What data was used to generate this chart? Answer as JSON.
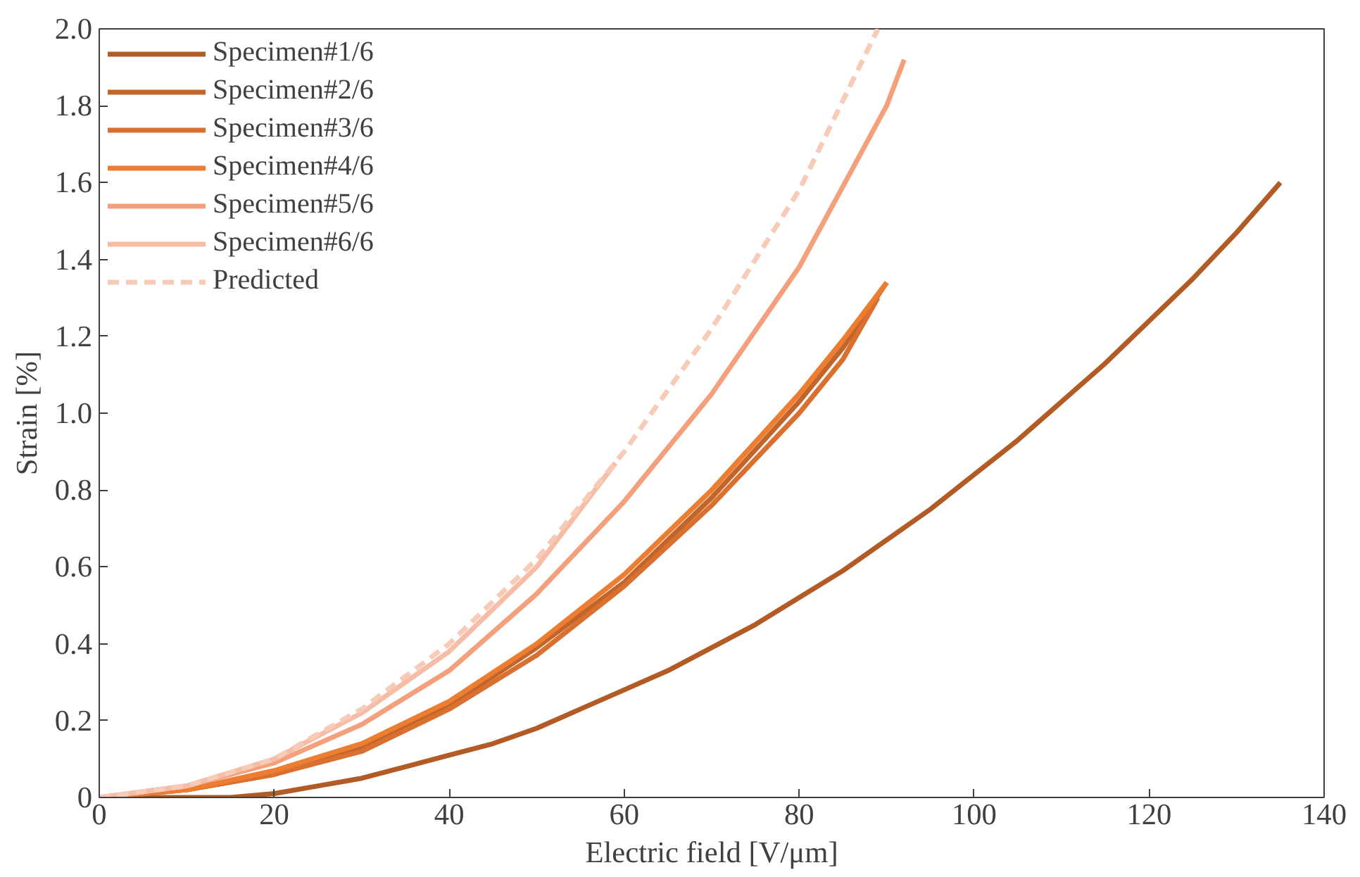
{
  "chart_data": {
    "type": "line",
    "xlabel": "Electric field [V/μm]",
    "ylabel": "Strain [%]",
    "xlim": [
      0,
      140
    ],
    "xticks": [
      0,
      20,
      40,
      60,
      80,
      100,
      120,
      140
    ],
    "ylim": [
      0,
      2.0
    ],
    "yticks": [
      {
        "value": 0,
        "label": "0"
      },
      {
        "value": 0.2,
        "label": "0.2"
      },
      {
        "value": 0.4,
        "label": "0.4"
      },
      {
        "value": 0.6,
        "label": "0.6"
      },
      {
        "value": 0.8,
        "label": "0.8"
      },
      {
        "value": 1.0,
        "label": "1.0"
      },
      {
        "value": 1.2,
        "label": "1.2"
      },
      {
        "value": 1.4,
        "label": "1.4"
      },
      {
        "value": 1.6,
        "label": "1.6"
      },
      {
        "value": 1.8,
        "label": "1.8"
      },
      {
        "value": 2.0,
        "label": "2.0"
      }
    ],
    "grid": false,
    "legend": "top left",
    "line_style": "solid",
    "series": [
      {
        "name": "Specimen#1/6",
        "color": "#b35b25",
        "x": [
          0,
          10,
          15,
          20,
          25,
          30,
          35,
          40,
          45,
          50,
          55,
          60,
          65,
          70,
          75,
          80,
          85,
          90,
          95,
          100,
          105,
          110,
          115,
          120,
          125,
          130,
          135
        ],
        "values": [
          0,
          0,
          0,
          0.01,
          0.03,
          0.05,
          0.08,
          0.11,
          0.14,
          0.18,
          0.23,
          0.28,
          0.33,
          0.39,
          0.45,
          0.52,
          0.59,
          0.67,
          0.75,
          0.84,
          0.93,
          1.03,
          1.13,
          1.24,
          1.35,
          1.47,
          1.6
        ]
      },
      {
        "name": "Specimen#2/6",
        "color": "#c2652b",
        "x": [
          0,
          10,
          20,
          30,
          40,
          50,
          60,
          70,
          80,
          85,
          90
        ],
        "values": [
          0,
          0.02,
          0.06,
          0.13,
          0.24,
          0.39,
          0.56,
          0.78,
          1.03,
          1.17,
          1.34
        ]
      },
      {
        "name": "Specimen#3/6",
        "color": "#d9702f",
        "x": [
          0,
          10,
          20,
          30,
          40,
          50,
          60,
          70,
          80,
          85,
          89
        ],
        "values": [
          0,
          0.02,
          0.06,
          0.12,
          0.23,
          0.37,
          0.55,
          0.76,
          1.0,
          1.14,
          1.3
        ]
      },
      {
        "name": "Specimen#4/6",
        "color": "#ed7d31",
        "x": [
          0,
          10,
          20,
          30,
          40,
          50,
          60,
          70,
          80,
          85,
          90
        ],
        "values": [
          0,
          0.02,
          0.07,
          0.14,
          0.25,
          0.4,
          0.58,
          0.8,
          1.05,
          1.19,
          1.34
        ]
      },
      {
        "name": "Specimen#5/6",
        "color": "#f4a07c",
        "x": [
          0,
          10,
          20,
          30,
          40,
          50,
          60,
          70,
          80,
          90,
          92
        ],
        "values": [
          0,
          0.03,
          0.09,
          0.19,
          0.33,
          0.53,
          0.77,
          1.05,
          1.38,
          1.8,
          1.92
        ]
      },
      {
        "name": "Specimen#6/6",
        "color": "#f7bca5",
        "x": [
          0,
          10,
          20,
          30,
          40,
          50,
          59
        ],
        "values": [
          0,
          0.03,
          0.1,
          0.22,
          0.38,
          0.6,
          0.87
        ]
      },
      {
        "name": "Predicted",
        "color": "#f8cbb8",
        "line_style": "dashed",
        "x": [
          0,
          10,
          20,
          30,
          40,
          50,
          60,
          70,
          80,
          89
        ],
        "values": [
          0,
          0.03,
          0.1,
          0.23,
          0.4,
          0.62,
          0.9,
          1.22,
          1.58,
          2.0
        ]
      }
    ]
  }
}
